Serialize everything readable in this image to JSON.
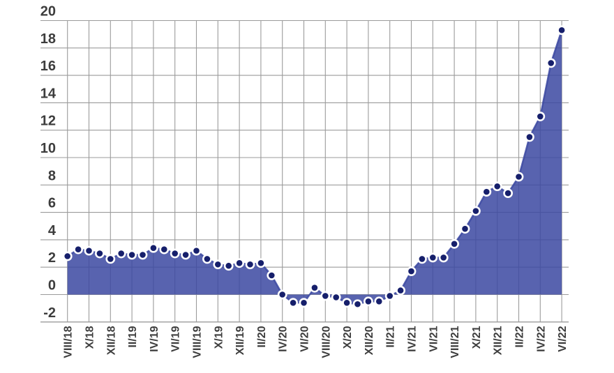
{
  "chart_data": {
    "type": "area",
    "title": "",
    "xlabel": "",
    "ylabel": "",
    "x": [
      "VIII/18",
      "IX/18",
      "X/18",
      "XI/18",
      "XII/18",
      "I/19",
      "II/19",
      "III/19",
      "IV/19",
      "V/19",
      "VI/19",
      "VII/19",
      "VIII/19",
      "IX/19",
      "X/19",
      "XI/19",
      "XII/19",
      "I/20",
      "II/20",
      "III/20",
      "IV/20",
      "V/20",
      "VI/20",
      "VII/20",
      "VIII/20",
      "IX/20",
      "X/20",
      "XI/20",
      "XII/20",
      "I/21",
      "II/21",
      "III/21",
      "IV/21",
      "V/21",
      "VI/21",
      "VII/21",
      "VIII/21",
      "IX/21",
      "X/21",
      "XI/21",
      "XII/21",
      "I/22",
      "II/22",
      "III/22",
      "IV/22",
      "V/22",
      "VI/22"
    ],
    "values": [
      2.8,
      3.3,
      3.2,
      3.0,
      2.6,
      3.0,
      2.9,
      2.9,
      3.4,
      3.3,
      3.0,
      2.9,
      3.2,
      2.6,
      2.2,
      2.1,
      2.3,
      2.2,
      2.3,
      1.4,
      0.0,
      -0.6,
      -0.6,
      0.5,
      -0.1,
      -0.2,
      -0.6,
      -0.7,
      -0.5,
      -0.5,
      -0.1,
      0.3,
      1.7,
      2.6,
      2.7,
      2.7,
      3.7,
      4.8,
      6.1,
      7.5,
      7.9,
      7.4,
      8.6,
      11.5,
      13.0,
      16.9,
      19.3
    ],
    "x_tick_labels": [
      "VIII/18",
      "X/18",
      "XII/18",
      "II/19",
      "IV/19",
      "VI/19",
      "VIII/19",
      "X/19",
      "XII/19",
      "II/20",
      "IV/20",
      "VI/20",
      "VIII/20",
      "X/20",
      "XII/20",
      "II/21",
      "IV/21",
      "VI/21",
      "VIII/21",
      "X/21",
      "XII/21",
      "II/22",
      "IV/22",
      "VI/22"
    ],
    "x_tick_every": 2,
    "ylim": [
      -2,
      20
    ],
    "ytick_step": 2,
    "grid": "both",
    "legend": "none",
    "baseline": 0
  },
  "style": {
    "fill_color": "#3b48a1",
    "fill_opacity": 0.85,
    "line_color": "#3b48a1",
    "dot_color": "#161f6b",
    "dot_ring_color": "#ffffff",
    "grid_color": "#9b9b9b",
    "axis_text_color": "#3d3d3d",
    "background": "#ffffff"
  }
}
